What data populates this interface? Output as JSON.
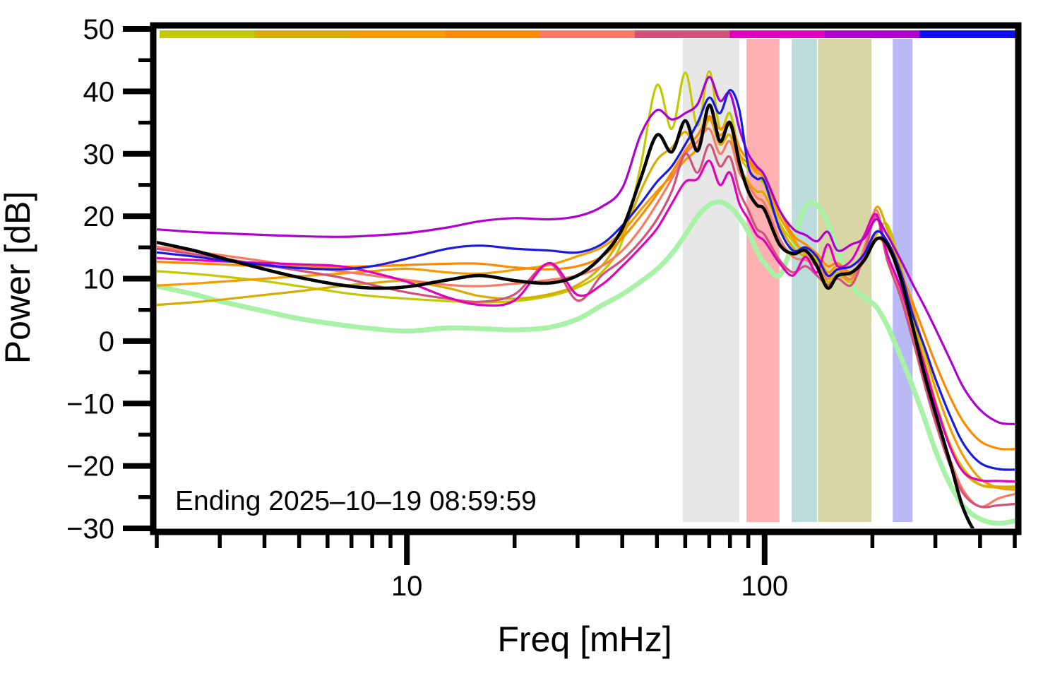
{
  "chart_data": {
    "type": "line",
    "xlabel": "Freq [mHz]",
    "ylabel": "Power [dB]",
    "annotation": "Ending 2025–10–19 08:59:59",
    "x_scale": "log",
    "xlim": [
      2,
      500
    ],
    "ylim": [
      -30,
      50
    ],
    "grid": false,
    "legend": false,
    "x_major_ticks": [
      10,
      100
    ],
    "x_major_tick_labels": [
      "10",
      "100"
    ],
    "x_minor_ticks": [
      2,
      3,
      4,
      5,
      6,
      7,
      8,
      9,
      20,
      30,
      40,
      50,
      60,
      70,
      80,
      90,
      200,
      300,
      400,
      500
    ],
    "y_major_ticks": [
      50,
      40,
      30,
      20,
      10,
      0,
      -10,
      -20,
      -30
    ],
    "y_major_tick_labels": [
      "50",
      "40",
      "30",
      "20",
      "10",
      "0",
      "−10",
      "−20",
      "−30"
    ],
    "y_minor_ticks": [
      45,
      35,
      25,
      15,
      5,
      -5,
      -15,
      -25
    ],
    "time_colorbar": {
      "segment_colors": [
        "#c3c900",
        "#d8ac00",
        "#f49c00",
        "#ff8a00",
        "#fa7a62",
        "#d4507d",
        "#e100be",
        "#b000d0",
        "#0d0df5"
      ]
    },
    "frequency_bands": [
      {
        "name": "band-gray",
        "color": "#e7e7e7",
        "range_mHz": [
          59,
          85
        ]
      },
      {
        "name": "band-pink",
        "color": "#ffb0b0",
        "range_mHz": [
          89,
          110
        ]
      },
      {
        "name": "band-teal",
        "color": "#bcdcdc",
        "range_mHz": [
          119,
          140
        ]
      },
      {
        "name": "band-olive",
        "color": "#d9d6a6",
        "range_mHz": [
          141,
          199
        ]
      },
      {
        "name": "band-lavender",
        "color": "#b9b9f5",
        "range_mHz": [
          228,
          259
        ]
      }
    ],
    "frequencies_mHz": [
      2,
      2.5,
      3,
      4,
      5,
      6.5,
      8,
      10,
      13,
      16,
      20,
      25,
      30,
      35,
      40,
      45,
      50,
      55,
      60,
      65,
      70,
      75,
      80,
      85,
      90,
      95,
      100,
      110,
      120,
      130,
      140,
      150,
      160,
      175,
      190,
      205,
      220,
      240,
      260,
      280,
      300,
      330,
      360,
      400,
      450,
      500
    ],
    "series": [
      {
        "name": "reference-green",
        "color": "#a8f2a8",
        "width": 7,
        "power_dB": [
          8.8,
          7.6,
          6.4,
          4.8,
          3.6,
          2.6,
          2.0,
          1.6,
          2.1,
          2.0,
          1.8,
          2.2,
          3.5,
          5.7,
          7.5,
          9.5,
          11.5,
          14.0,
          17.0,
          20.0,
          21.8,
          22.3,
          21.5,
          19.8,
          17.5,
          14.5,
          12.5,
          10.5,
          16.0,
          21.5,
          21.8,
          19.0,
          14.5,
          9.0,
          7.0,
          5.5,
          2.5,
          -2.5,
          -7.5,
          -12.5,
          -17.5,
          -23.0,
          -26.5,
          -28.5,
          -29.2,
          -28.8
        ]
      },
      {
        "name": "hour-olive",
        "color": "#c3c900",
        "width": 3.2,
        "power_dB": [
          11.2,
          10.8,
          10.4,
          9.6,
          8.8,
          7.8,
          7.2,
          6.8,
          6.4,
          6.2,
          6.4,
          7.2,
          8.6,
          11.0,
          16.0,
          28.0,
          41.0,
          34.0,
          43.0,
          34.5,
          43.2,
          34.0,
          36.5,
          30.0,
          27.5,
          26.0,
          25.0,
          19.0,
          16.0,
          14.0,
          13.0,
          10.0,
          11.0,
          9.5,
          13.5,
          17.0,
          18.7,
          12.0,
          4.0,
          -3.0,
          -9.5,
          -16.5,
          -20.5,
          -23.0,
          -23.5,
          -23.6
        ]
      },
      {
        "name": "hour-gold",
        "color": "#d8ac00",
        "width": 3.2,
        "power_dB": [
          5.8,
          6.2,
          6.6,
          7.4,
          8.0,
          8.8,
          9.3,
          9.6,
          8.5,
          7.2,
          6.8,
          7.5,
          9.0,
          12.0,
          17.0,
          24.0,
          29.0,
          31.0,
          33.5,
          31.0,
          35.5,
          31.5,
          33.0,
          28.0,
          25.5,
          24.0,
          23.5,
          18.5,
          15.0,
          13.5,
          12.5,
          9.5,
          10.5,
          10.0,
          14.0,
          21.4,
          18.0,
          11.0,
          3.5,
          -4.0,
          -10.0,
          -17.0,
          -21.0,
          -23.0,
          -23.3,
          -23.3
        ]
      },
      {
        "name": "hour-orange",
        "color": "#f49c00",
        "width": 3.2,
        "power_dB": [
          8.9,
          9.2,
          9.5,
          10.0,
          10.4,
          10.8,
          11.2,
          11.6,
          11.0,
          10.8,
          11.4,
          12.2,
          13.6,
          15.0,
          17.5,
          21.0,
          24.0,
          26.5,
          29.0,
          31.0,
          35.8,
          33.0,
          34.5,
          30.0,
          28.5,
          27.0,
          26.0,
          20.0,
          16.5,
          14.0,
          13.5,
          11.0,
          12.0,
          10.5,
          13.0,
          17.5,
          16.0,
          11.5,
          5.0,
          -1.5,
          -7.5,
          -14.0,
          -18.5,
          -22.0,
          -23.5,
          -23.8
        ]
      },
      {
        "name": "hour-dark-orange",
        "color": "#ff8a00",
        "width": 3.2,
        "power_dB": [
          12.7,
          12.5,
          12.3,
          12.0,
          11.9,
          11.9,
          12.0,
          12.2,
          12.4,
          12.4,
          11.8,
          11.5,
          12.0,
          13.5,
          16.5,
          20.0,
          23.5,
          27.0,
          30.5,
          33.0,
          36.0,
          34.0,
          35.0,
          31.0,
          29.0,
          27.5,
          26.5,
          21.0,
          17.0,
          15.5,
          14.0,
          12.0,
          12.5,
          11.0,
          13.5,
          16.5,
          15.0,
          11.0,
          6.0,
          1.0,
          -3.5,
          -9.0,
          -13.0,
          -16.0,
          -17.2,
          -17.3
        ]
      },
      {
        "name": "hour-salmon",
        "color": "#fa7a62",
        "width": 3.2,
        "power_dB": [
          15.1,
          14.4,
          13.8,
          12.8,
          12.0,
          11.2,
          10.5,
          9.8,
          9.0,
          8.8,
          9.2,
          9.8,
          10.5,
          12.0,
          14.5,
          18.0,
          22.0,
          26.0,
          30.0,
          32.0,
          34.0,
          30.0,
          32.0,
          27.0,
          25.0,
          23.0,
          22.0,
          16.5,
          13.5,
          13.0,
          12.0,
          10.0,
          11.5,
          10.0,
          15.0,
          21.0,
          14.0,
          8.0,
          1.0,
          -6.0,
          -12.0,
          -19.0,
          -24.0,
          -26.5,
          -25.2,
          -24.5
        ]
      },
      {
        "name": "hour-rose",
        "color": "#d4507d",
        "width": 3.2,
        "power_dB": [
          14.8,
          14.0,
          13.3,
          12.2,
          11.3,
          10.2,
          9.0,
          7.8,
          6.8,
          6.3,
          7.5,
          12.4,
          6.5,
          10.5,
          13.0,
          16.0,
          19.5,
          24.0,
          30.0,
          27.0,
          31.5,
          28.0,
          29.5,
          24.0,
          21.0,
          18.0,
          17.0,
          13.0,
          11.0,
          12.0,
          10.5,
          9.0,
          10.0,
          9.0,
          14.0,
          20.0,
          13.0,
          7.0,
          0.0,
          -7.0,
          -13.0,
          -20.0,
          -24.5,
          -26.5,
          -26.3,
          -26.1
        ]
      },
      {
        "name": "hour-magenta",
        "color": "#e100be",
        "width": 3.2,
        "power_dB": [
          13.3,
          13.0,
          12.8,
          12.5,
          12.3,
          12.0,
          11.0,
          9.5,
          7.0,
          5.8,
          6.5,
          12.5,
          7.4,
          9.0,
          12.0,
          15.0,
          18.0,
          22.0,
          25.5,
          26.0,
          28.9,
          25.0,
          27.0,
          22.0,
          19.5,
          17.0,
          16.0,
          12.5,
          10.5,
          13.5,
          11.0,
          15.5,
          12.0,
          13.0,
          17.0,
          20.3,
          14.0,
          8.5,
          2.0,
          -4.0,
          -10.0,
          -17.0,
          -21.0,
          -22.3,
          -22.4,
          -22.5
        ]
      },
      {
        "name": "hour-purple",
        "color": "#b000d0",
        "width": 3.2,
        "power_dB": [
          17.9,
          17.5,
          17.3,
          17.0,
          16.8,
          16.7,
          16.9,
          17.3,
          18.2,
          19.2,
          19.7,
          19.5,
          20.0,
          21.5,
          24.5,
          33.0,
          37.0,
          35.5,
          36.5,
          38.0,
          42.3,
          38.5,
          39.7,
          34.0,
          30.0,
          28.0,
          26.5,
          21.0,
          18.0,
          17.0,
          16.0,
          17.5,
          14.5,
          15.5,
          16.5,
          19.5,
          17.0,
          13.0,
          9.0,
          5.5,
          2.0,
          -3.0,
          -7.5,
          -11.0,
          -13.0,
          -13.3
        ]
      },
      {
        "name": "hour-blue",
        "color": "#1a1ae0",
        "width": 3.2,
        "power_dB": [
          14.2,
          13.6,
          13.0,
          12.2,
          11.7,
          11.5,
          12.0,
          13.2,
          14.8,
          15.3,
          14.8,
          14.5,
          14.2,
          15.5,
          18.5,
          22.0,
          25.5,
          28.0,
          31.5,
          35.0,
          39.0,
          36.5,
          40.2,
          37.0,
          28.0,
          26.0,
          25.5,
          18.0,
          14.5,
          15.0,
          13.5,
          10.5,
          11.5,
          12.0,
          14.0,
          17.5,
          16.0,
          11.0,
          4.0,
          -1.0,
          -6.0,
          -12.0,
          -16.5,
          -19.5,
          -20.5,
          -20.6
        ]
      },
      {
        "name": "current-black",
        "color": "#000000",
        "width": 4.6,
        "power_dB": [
          15.8,
          14.6,
          13.4,
          11.5,
          10.2,
          9.0,
          8.5,
          8.7,
          9.8,
          10.5,
          9.7,
          9.3,
          10.5,
          13.5,
          18.0,
          26.0,
          33.0,
          30.3,
          35.3,
          30.5,
          37.8,
          32.0,
          35.0,
          28.5,
          24.0,
          21.8,
          21.0,
          15.5,
          14.0,
          14.5,
          12.0,
          8.5,
          10.5,
          11.0,
          13.0,
          16.3,
          15.5,
          10.0,
          2.0,
          -5.5,
          -11.5,
          -19.5,
          -27.0,
          -31.5,
          -32.0,
          -32.0
        ]
      }
    ]
  }
}
